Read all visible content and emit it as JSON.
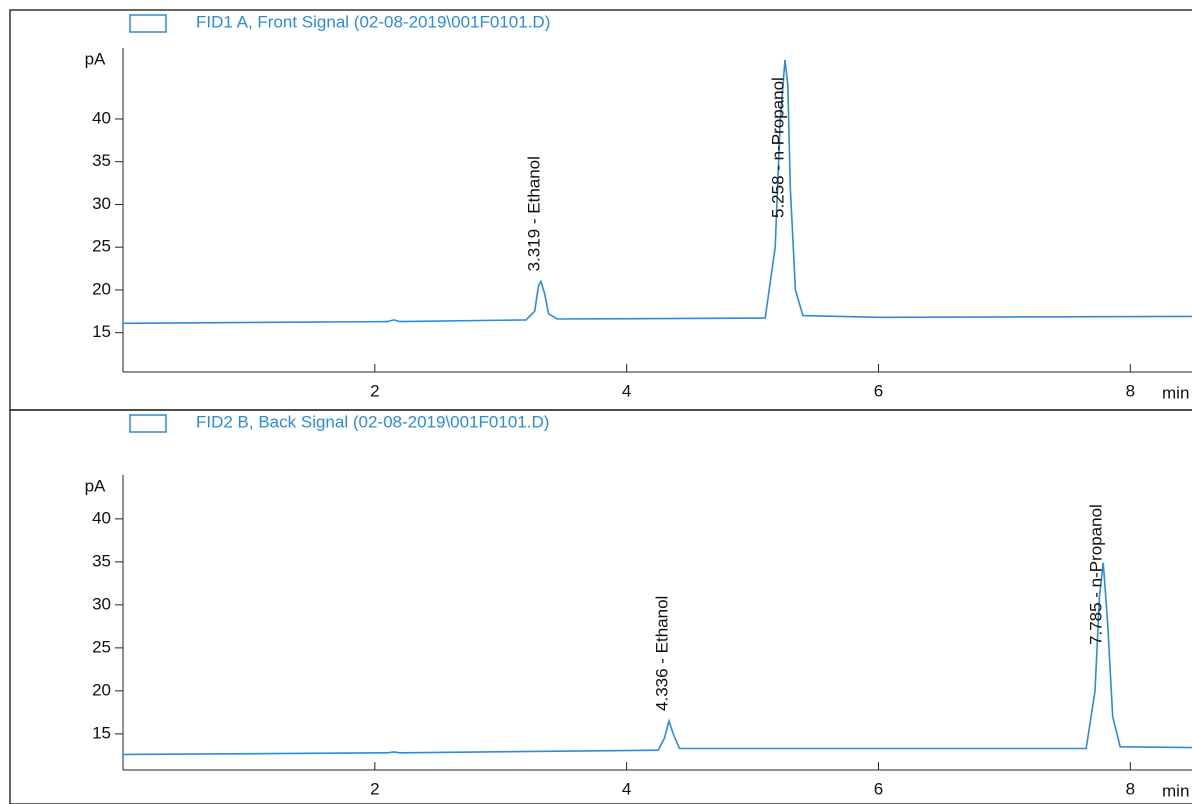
{
  "chart_data": [
    {
      "type": "line",
      "ylabel": "pA",
      "xlabel": "min",
      "xlim": [
        0,
        8.49
      ],
      "ylim": [
        10.4,
        48.3
      ],
      "xticks": [
        2,
        4,
        6,
        8
      ],
      "yticks": [
        15,
        20,
        25,
        30,
        35,
        40
      ],
      "series": [
        {
          "name": "FID1 A, Front Signal (02-08-2019\\001F0101.D)",
          "color": "#2e8bdb",
          "x": [
            0,
            2.1,
            2.15,
            2.2,
            3.2,
            3.27,
            3.3,
            3.319,
            3.35,
            3.38,
            3.45,
            5.1,
            5.18,
            5.22,
            5.258,
            5.28,
            5.3,
            5.34,
            5.4,
            6.0,
            8.49
          ],
          "values": [
            16.1,
            16.3,
            16.5,
            16.3,
            16.5,
            17.5,
            20.5,
            21.0,
            19.5,
            17.2,
            16.6,
            16.7,
            25,
            40,
            46.9,
            44,
            32,
            20,
            17.0,
            16.8,
            16.9
          ]
        }
      ],
      "annotations": [
        {
          "value": 3.319,
          "label": "3.319 -  Ethanol"
        },
        {
          "value": 5.258,
          "label": "5.258 -  n-Propanol"
        }
      ]
    },
    {
      "type": "line",
      "ylabel": "pA",
      "xlabel": "min",
      "xlim": [
        0,
        8.49
      ],
      "ylim": [
        10.8,
        45.1
      ],
      "xticks": [
        2,
        4,
        6,
        8
      ],
      "yticks": [
        15,
        20,
        25,
        30,
        35,
        40
      ],
      "series": [
        {
          "name": "FID2 B, Back Signal (02-08-2019\\001F0101.D)",
          "color": "#2e8bdb",
          "x": [
            0,
            2.1,
            2.15,
            2.2,
            4.25,
            4.3,
            4.336,
            4.37,
            4.42,
            7.65,
            7.72,
            7.755,
            7.785,
            7.82,
            7.86,
            7.92,
            8.49
          ],
          "values": [
            12.6,
            12.8,
            12.9,
            12.8,
            13.1,
            14.5,
            16.5,
            15.0,
            13.3,
            13.3,
            20,
            31,
            34.9,
            28,
            17,
            13.5,
            13.4
          ]
        }
      ],
      "annotations": [
        {
          "value": 4.336,
          "label": "4.336 -  Ethanol"
        },
        {
          "value": 7.785,
          "label": "7.785 -  n-Propanol"
        }
      ]
    }
  ]
}
